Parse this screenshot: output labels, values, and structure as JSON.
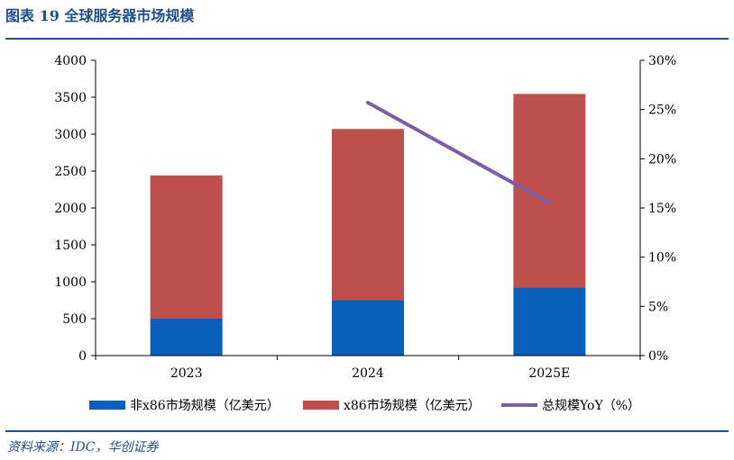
{
  "figure": {
    "title": "图表 19  全球服务器市场规模",
    "source": "资料来源：IDC，华创证券"
  },
  "colors": {
    "non_x86": "#0a5fba",
    "x86": "#c0504d",
    "yoy": "#7b5fa6",
    "rule": "#1f4e8c"
  },
  "chart_data": {
    "type": "bar",
    "stacked": true,
    "categories": [
      "2023",
      "2024",
      "2025E"
    ],
    "series": [
      {
        "name": "非x86市场规模（亿美元）",
        "values": [
          500,
          750,
          920
        ],
        "color": "#0a5fba",
        "axis": "left"
      },
      {
        "name": "x86市场规模（亿美元）",
        "values": [
          1940,
          2320,
          2625
        ],
        "color": "#c0504d",
        "axis": "left"
      },
      {
        "name": "总规模YoY（%）",
        "type": "line",
        "values": [
          null,
          25.7,
          15.5
        ],
        "color": "#7b5fa6",
        "axis": "right"
      }
    ],
    "ylim": [
      0,
      4000
    ],
    "yticks": [
      "0",
      "500",
      "1000",
      "1500",
      "2000",
      "2500",
      "3000",
      "3500",
      "4000"
    ],
    "ylim_right": [
      0,
      30
    ],
    "yticks_right": [
      "0%",
      "5%",
      "10%",
      "15%",
      "20%",
      "25%",
      "30%"
    ],
    "xlabel": "",
    "ylabel": "",
    "legend_position": "bottom",
    "grid": false
  }
}
